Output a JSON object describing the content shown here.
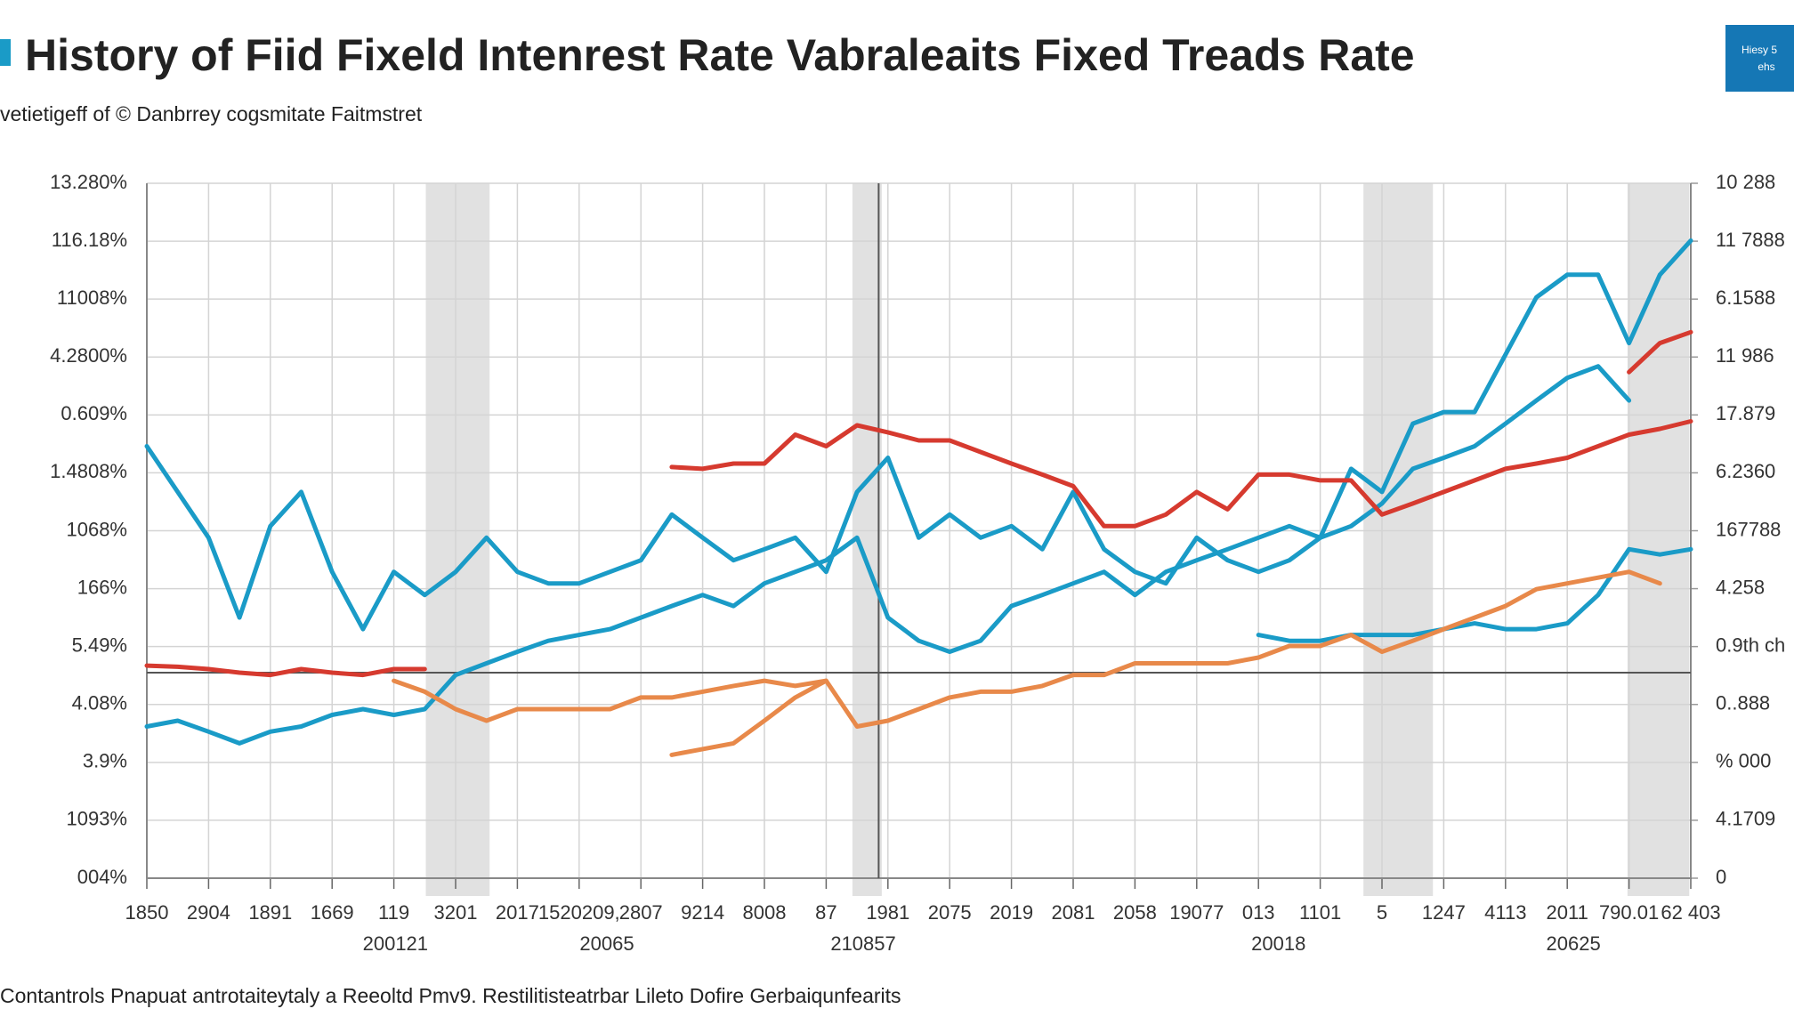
{
  "chart_data": {
    "type": "line",
    "title": "History of Fiid Fixeld Intenrest Rate Vabraleaits Fixed Treads Rate",
    "subtitle": "vetietigeff of © Danbrrey cogsmitate Faitmstret",
    "footer": "Contantrols Pnapuat antrotaiteytaly a Reeoltd Pmv9. Restilitisteatrbar Lileto Dofire Gerbaiqunfearits",
    "badge": [
      "Hiesy 5",
      "ehs"
    ],
    "x": [
      0,
      2,
      4,
      6,
      8,
      10,
      12,
      14,
      16,
      18,
      20,
      22,
      24,
      26,
      28,
      30,
      32,
      34,
      36,
      38,
      40,
      42,
      44,
      46,
      48,
      50,
      52,
      54,
      56,
      58,
      60,
      62,
      64,
      66,
      68,
      70,
      72,
      74,
      76,
      78,
      80,
      82,
      84,
      86,
      88,
      90,
      92,
      94,
      96,
      98,
      100
    ],
    "xlim": [
      0,
      100
    ],
    "xticks": [
      {
        "value": 0,
        "label": "1850"
      },
      {
        "value": 4,
        "label": "2904"
      },
      {
        "value": 8,
        "label": "1891"
      },
      {
        "value": 12,
        "label": "1669"
      },
      {
        "value": 16,
        "label": "119"
      },
      {
        "value": 20,
        "label": "3201"
      },
      {
        "value": 24,
        "label": "2017"
      },
      {
        "value": 28,
        "label": "1520209,"
      },
      {
        "value": 32,
        "label": "2807"
      },
      {
        "value": 36,
        "label": "9214"
      },
      {
        "value": 40,
        "label": "8008"
      },
      {
        "value": 44,
        "label": "87"
      },
      {
        "value": 48,
        "label": "1981"
      },
      {
        "value": 52,
        "label": "2075"
      },
      {
        "value": 56,
        "label": "2019"
      },
      {
        "value": 60,
        "label": "2081"
      },
      {
        "value": 64,
        "label": "2058"
      },
      {
        "value": 68,
        "label": "19077"
      },
      {
        "value": 72,
        "label": "013"
      },
      {
        "value": 76,
        "label": "1101"
      },
      {
        "value": 80,
        "label": "5"
      },
      {
        "value": 84,
        "label": "1247"
      },
      {
        "value": 88,
        "label": "4113"
      },
      {
        "value": 92,
        "label": "2011"
      },
      {
        "value": 96,
        "label": "790.01"
      },
      {
        "value": 100,
        "label": "62 403"
      }
    ],
    "x_sublabels": [
      {
        "value": 16.1,
        "label": "200121"
      },
      {
        "value": 29.8,
        "label": "20065"
      },
      {
        "value": 46.4,
        "label": "210857"
      },
      {
        "value": 73.3,
        "label": "20018"
      },
      {
        "value": 92.4,
        "label": "20625"
      }
    ],
    "ylim": [
      0,
      12
    ],
    "yticks": [
      {
        "value": 0,
        "label": "004%"
      },
      {
        "value": 1,
        "label": "1093%"
      },
      {
        "value": 2,
        "label": "3.9%"
      },
      {
        "value": 3,
        "label": "4.08%"
      },
      {
        "value": 4,
        "label": "5.49%"
      },
      {
        "value": 5,
        "label": "166%"
      },
      {
        "value": 6,
        "label": "1068%"
      },
      {
        "value": 7,
        "label": "1.4808%"
      },
      {
        "value": 8,
        "label": "0.609%"
      },
      {
        "value": 9,
        "label": "4.2800%"
      },
      {
        "value": 10,
        "label": "11008%"
      },
      {
        "value": 11,
        "label": "116.18%"
      },
      {
        "value": 12,
        "label": "13.280%"
      }
    ],
    "y2lim": [
      0,
      12
    ],
    "y2ticks": [
      0,
      {
        "value": 1,
        "label": "4.1709"
      },
      {
        "value": 2,
        "label": "% 000"
      },
      {
        "value": 3,
        "label": "0..888"
      },
      {
        "value": 4,
        "label": "0.9th ch"
      },
      {
        "value": 5,
        "label": "4.258"
      },
      {
        "value": 6,
        "label": "167788"
      },
      {
        "value": 7,
        "label": "6.2360"
      },
      {
        "value": 8,
        "label": "17.879"
      },
      {
        "value": 9,
        "label": "11 986"
      },
      {
        "value": 10,
        "label": "6.1588"
      },
      {
        "value": 11,
        "label": "11 7888"
      },
      {
        "value": 12,
        "label": "10 288"
      }
    ],
    "grid": true,
    "shaded_ranges": [
      [
        18.07,
        22.2
      ],
      [
        45.7,
        47.6
      ],
      [
        78.8,
        83.3
      ],
      [
        95.9,
        99.9
      ]
    ],
    "shade_color": "#d9d9d9",
    "reference_y": 3.55,
    "reference_x": 47.4,
    "reference_color": "#555555",
    "series": [
      {
        "color": "#1a9bc7",
        "values": [
          7.46,
          6.67,
          5.88,
          4.5,
          6.08,
          6.67,
          5.29,
          4.3,
          5.29,
          4.89,
          5.29,
          5.88,
          5.29,
          5.09,
          5.09,
          5.29,
          5.49,
          6.28,
          5.88,
          5.49,
          5.68,
          5.88,
          5.29,
          6.67,
          7.26,
          5.88,
          6.28,
          5.88,
          6.08,
          5.68,
          6.67,
          5.68,
          5.29,
          5.09,
          5.88,
          5.49,
          5.29,
          5.49,
          5.88,
          7.07,
          6.67,
          7.85,
          8.05,
          8.05,
          9.04,
          10.03,
          10.42,
          10.42,
          9.24,
          10.42,
          11.01
        ]
      },
      {
        "color": "#1a9bc7",
        "values": [
          2.62,
          2.72,
          2.53,
          2.33,
          2.53,
          2.62,
          2.82,
          2.92,
          2.82,
          2.92,
          3.51,
          3.71,
          3.91,
          4.1,
          4.2,
          4.3,
          4.5,
          4.7,
          4.89,
          4.7,
          5.09,
          5.29,
          5.49,
          5.88,
          4.5,
          4.1,
          3.91,
          4.1,
          4.7,
          4.89,
          5.09,
          5.29,
          4.89,
          5.29,
          5.49,
          5.68,
          5.88,
          6.08,
          5.88,
          6.08,
          6.47,
          7.07,
          7.26,
          7.46,
          7.85,
          8.25,
          8.64,
          8.84,
          8.25,
          null,
          null
        ]
      },
      {
        "color": "#1a9bc7",
        "values": [
          null,
          null,
          null,
          null,
          null,
          null,
          null,
          null,
          null,
          null,
          null,
          null,
          null,
          null,
          null,
          null,
          null,
          null,
          null,
          null,
          null,
          null,
          null,
          null,
          null,
          null,
          null,
          null,
          null,
          null,
          null,
          null,
          null,
          null,
          null,
          null,
          4.2,
          4.1,
          4.1,
          4.2,
          4.2,
          4.2,
          4.3,
          4.4,
          4.3,
          4.3,
          4.4,
          4.89,
          5.68,
          5.59,
          5.68
        ]
      },
      {
        "color": "#d63a2f",
        "values": [
          3.67,
          3.65,
          3.61,
          3.55,
          3.51,
          3.61,
          3.55,
          3.51,
          3.61,
          3.61,
          null,
          null,
          null,
          null,
          null,
          null,
          null,
          7.1,
          7.07,
          7.16,
          7.16,
          7.66,
          7.46,
          7.82,
          7.7,
          7.56,
          7.56,
          7.36,
          7.16,
          6.97,
          6.77,
          6.08,
          6.08,
          6.28,
          6.67,
          6.37,
          6.97,
          6.97,
          6.87,
          6.87,
          6.28,
          6.47,
          6.67,
          6.87,
          7.07,
          7.16,
          7.26,
          7.46,
          7.66,
          7.76,
          7.89
        ]
      },
      {
        "color": "#d63a2f",
        "values": [
          null,
          null,
          null,
          null,
          null,
          null,
          null,
          null,
          null,
          null,
          null,
          null,
          null,
          null,
          null,
          null,
          null,
          null,
          null,
          null,
          null,
          null,
          null,
          null,
          null,
          null,
          null,
          null,
          null,
          null,
          null,
          null,
          null,
          null,
          null,
          null,
          null,
          null,
          null,
          null,
          null,
          null,
          null,
          null,
          null,
          null,
          null,
          null,
          8.74,
          9.24,
          9.43
        ]
      },
      {
        "color": "#e8894a",
        "values": [
          null,
          null,
          null,
          null,
          null,
          null,
          null,
          null,
          3.41,
          3.22,
          2.92,
          2.72,
          2.92,
          2.92,
          2.92,
          2.92,
          3.12,
          3.12,
          3.22,
          3.32,
          3.41,
          3.32,
          3.41,
          2.62,
          2.72,
          2.92,
          3.12,
          3.22,
          3.22,
          3.32,
          3.51,
          3.51,
          3.71,
          3.71,
          3.71,
          3.71,
          3.81,
          4.01,
          4.01,
          4.2,
          3.91,
          4.1,
          4.3,
          4.5,
          4.7,
          4.99,
          5.09,
          5.19,
          5.29,
          5.09,
          null
        ]
      },
      {
        "color": "#e8894a",
        "values": [
          null,
          null,
          null,
          null,
          null,
          null,
          null,
          null,
          null,
          null,
          null,
          null,
          null,
          null,
          null,
          null,
          null,
          2.13,
          2.23,
          2.33,
          2.72,
          3.12,
          3.41,
          null,
          null,
          null,
          null,
          null,
          null,
          null,
          null,
          null,
          null,
          null,
          null,
          null,
          null,
          null,
          null,
          null,
          null,
          null,
          null,
          null,
          null,
          null,
          null,
          null,
          null,
          null,
          null
        ]
      }
    ]
  }
}
